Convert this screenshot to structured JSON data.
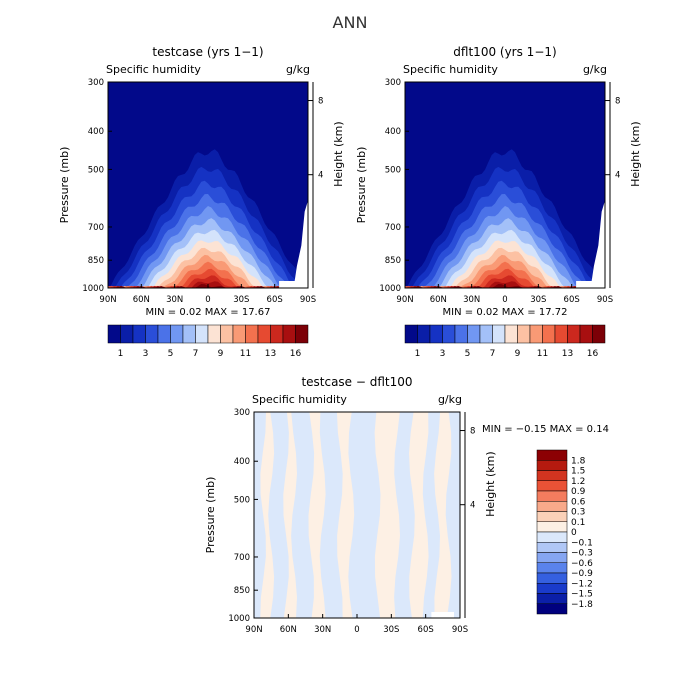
{
  "figure_title": "ANN",
  "colors": {
    "panel_scale": [
      "#02098a",
      "#0a1ea8",
      "#1532c3",
      "#2a4ed8",
      "#4b72e8",
      "#7197f2",
      "#a3c0f8",
      "#d4e3fb",
      "#fce3d4",
      "#fcc1a3",
      "#f99a75",
      "#f3714e",
      "#e64a31",
      "#cc281e",
      "#a80f10",
      "#7c0007"
    ],
    "diff_scale": [
      "#00007e",
      "#0b1fa8",
      "#1a3bcb",
      "#3560e0",
      "#5a83ec",
      "#86a6f2",
      "#b0c7f6",
      "#dbe8fb",
      "#fdf0e4",
      "#fbd1b8",
      "#f8a98a",
      "#f47c5e",
      "#ea5236",
      "#d23420",
      "#b51a0f",
      "#8c0003"
    ]
  },
  "chart_data": [
    {
      "type": "contour",
      "title": "testcase (yrs 1−1)",
      "subtitle_left": "Specific humidity",
      "subtitle_right": "g/kg",
      "ylabel": "Pressure (mb)",
      "ylabel_right": "Height (km)",
      "x_ticks": [
        "90N",
        "60N",
        "30N",
        "0",
        "30S",
        "60S",
        "90S"
      ],
      "y_ticks": [
        "300",
        "400",
        "500",
        "700",
        "850",
        "1000"
      ],
      "y_right_ticks": [
        "8",
        "4"
      ],
      "xlim": [
        90,
        -90
      ],
      "ylim": [
        1000,
        300
      ],
      "y_scale": "log",
      "stats": "MIN =    0.02   MAX =  17.67",
      "colorbar_labels": [
        "1",
        "3",
        "5",
        "7",
        "9",
        "11",
        "13",
        "16"
      ],
      "colorbar_orientation": "horizontal"
    },
    {
      "type": "contour",
      "title": "dflt100 (yrs 1−1)",
      "subtitle_left": "Specific humidity",
      "subtitle_right": "g/kg",
      "ylabel": "Pressure (mb)",
      "ylabel_right": "Height (km)",
      "x_ticks": [
        "90N",
        "60N",
        "30N",
        "0",
        "30S",
        "60S",
        "90S"
      ],
      "y_ticks": [
        "300",
        "400",
        "500",
        "700",
        "850",
        "1000"
      ],
      "y_right_ticks": [
        "8",
        "4"
      ],
      "xlim": [
        90,
        -90
      ],
      "ylim": [
        1000,
        300
      ],
      "y_scale": "log",
      "stats": "MIN =    0.02   MAX =  17.72",
      "colorbar_labels": [
        "1",
        "3",
        "5",
        "7",
        "9",
        "11",
        "13",
        "16"
      ],
      "colorbar_orientation": "horizontal"
    },
    {
      "type": "contour",
      "title": "testcase − dflt100",
      "subtitle_left": "Specific humidity",
      "subtitle_right": "g/kg",
      "ylabel": "Pressure (mb)",
      "ylabel_right": "Height (km)",
      "x_ticks": [
        "90N",
        "60N",
        "30N",
        "0",
        "30S",
        "60S",
        "90S"
      ],
      "y_ticks": [
        "300",
        "400",
        "500",
        "700",
        "850",
        "1000"
      ],
      "y_right_ticks": [
        "8",
        "4"
      ],
      "xlim": [
        90,
        -90
      ],
      "ylim": [
        1000,
        300
      ],
      "y_scale": "log",
      "stats": "MIN =   −0.15    MAX =    0.14",
      "colorbar_labels": [
        "1.8",
        "1.5",
        "1.2",
        "0.9",
        "0.6",
        "0.3",
        "0.1",
        "0",
        "−0.1",
        "−0.3",
        "−0.6",
        "−0.9",
        "−1.2",
        "−1.5",
        "−1.8"
      ],
      "colorbar_orientation": "vertical"
    }
  ]
}
